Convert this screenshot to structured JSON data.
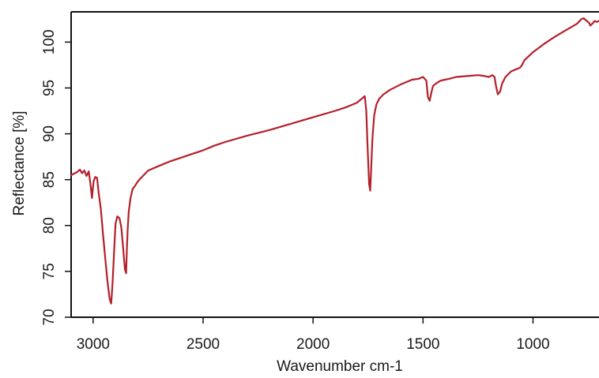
{
  "chart_data": {
    "type": "line",
    "title": "",
    "xlabel": "Wavenumber cm-1",
    "ylabel": "Reflectance [%]",
    "xlim": [
      3100,
      700
    ],
    "ylim": [
      70,
      103.3
    ],
    "x_ticks": [
      3000,
      2500,
      2000,
      1500,
      1000
    ],
    "x_tick_labels": [
      "3000",
      "2500",
      "2000",
      "1500",
      "1000"
    ],
    "y_ticks": [
      70,
      75,
      80,
      85,
      90,
      95,
      100
    ],
    "y_tick_labels": [
      "70",
      "75",
      "80",
      "85",
      "90",
      "95",
      "100"
    ],
    "grid": false,
    "legend": "none",
    "series": [
      {
        "color": "#b3202a",
        "x": [
          3100,
          3075,
          3060,
          3050,
          3040,
          3030,
          3020,
          3012,
          3005,
          2998,
          2990,
          2982,
          2975,
          2965,
          2955,
          2945,
          2935,
          2925,
          2918,
          2912,
          2905,
          2898,
          2890,
          2880,
          2872,
          2865,
          2860,
          2855,
          2850,
          2847,
          2843,
          2838,
          2830,
          2820,
          2810,
          2800,
          2790,
          2770,
          2750,
          2700,
          2650,
          2600,
          2550,
          2500,
          2450,
          2400,
          2300,
          2200,
          2100,
          2000,
          1900,
          1850,
          1800,
          1775,
          1765,
          1758,
          1752,
          1745,
          1740,
          1736,
          1730,
          1722,
          1712,
          1700,
          1680,
          1650,
          1600,
          1550,
          1520,
          1500,
          1485,
          1478,
          1470,
          1462,
          1455,
          1440,
          1420,
          1400,
          1380,
          1350,
          1300,
          1250,
          1220,
          1200,
          1185,
          1175,
          1168,
          1160,
          1150,
          1140,
          1125,
          1100,
          1080,
          1060,
          1050,
          1040,
          1000,
          950,
          900,
          850,
          800,
          780,
          770,
          760,
          750,
          745,
          740,
          730,
          720,
          710,
          700
        ],
        "values": [
          85.5,
          85.8,
          86.1,
          85.7,
          86.0,
          85.4,
          85.9,
          84.5,
          83.0,
          84.8,
          85.3,
          85.2,
          83.6,
          81.8,
          79.0,
          76.5,
          74.0,
          72.0,
          71.5,
          73.5,
          77.0,
          80.2,
          81.0,
          80.8,
          79.8,
          78.0,
          76.5,
          75.2,
          74.8,
          77.0,
          79.5,
          81.5,
          83.0,
          84.0,
          84.3,
          84.7,
          85.0,
          85.5,
          86.0,
          86.5,
          87.0,
          87.4,
          87.8,
          88.2,
          88.7,
          89.1,
          89.8,
          90.4,
          91.1,
          91.8,
          92.5,
          92.9,
          93.4,
          93.9,
          94.1,
          92.5,
          88.5,
          84.5,
          83.8,
          86.0,
          89.5,
          92.0,
          93.2,
          93.8,
          94.3,
          94.8,
          95.4,
          95.9,
          96.0,
          96.2,
          95.8,
          94.0,
          93.6,
          94.5,
          95.2,
          95.5,
          95.8,
          95.9,
          96.0,
          96.2,
          96.3,
          96.4,
          96.3,
          96.2,
          96.4,
          96.2,
          95.2,
          94.3,
          94.6,
          95.5,
          96.2,
          96.8,
          97.0,
          97.2,
          97.5,
          98.0,
          98.9,
          99.8,
          100.6,
          101.3,
          102.0,
          102.5,
          102.6,
          102.4,
          102.2,
          102.1,
          101.8,
          102.0,
          102.3,
          102.2,
          102.3
        ]
      }
    ]
  }
}
